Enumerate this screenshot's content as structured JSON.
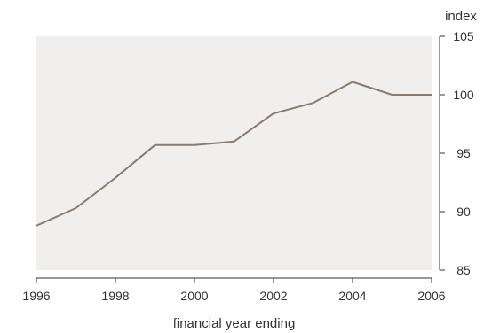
{
  "chart_data": {
    "type": "line",
    "title": "",
    "xlabel": "financial year ending",
    "ylabel": "index",
    "xlim": [
      1996,
      2006
    ],
    "ylim": [
      85,
      105
    ],
    "x_ticks": [
      "1996",
      "1998",
      "2000",
      "2002",
      "2004",
      "2006"
    ],
    "y_ticks": [
      "85",
      "90",
      "95",
      "100",
      "105"
    ],
    "grid": false,
    "plot_background": "#f1efed",
    "series": [
      {
        "color": "#8c7b6c",
        "x": [
          1996,
          1997,
          1998,
          1999,
          2000,
          2001,
          2002,
          2003,
          2004,
          2005,
          2006
        ],
        "y": [
          88.8,
          90.3,
          92.9,
          95.7,
          95.7,
          96.0,
          98.4,
          99.3,
          101.1,
          100.0,
          100.0
        ]
      }
    ]
  }
}
